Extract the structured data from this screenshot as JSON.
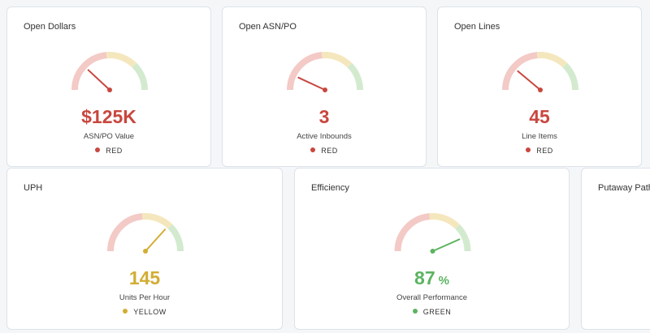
{
  "cards": [
    {
      "title": "Open Dollars",
      "value": "$125K",
      "subtitle": "ASN/PO Value",
      "status": "RED",
      "color": "#c8473f"
    },
    {
      "title": "Open ASN/PO",
      "value": "3",
      "subtitle": "Active Inbounds",
      "status": "RED",
      "color": "#c8473f"
    },
    {
      "title": "Open Lines",
      "value": "45",
      "subtitle": "Line Items",
      "status": "RED",
      "color": "#c8473f"
    },
    {
      "title": "UPH",
      "value": "145",
      "subtitle": "Units Per Hour",
      "status": "YELLOW",
      "color": "#d2ad33"
    },
    {
      "title": "Efficiency",
      "value": "87",
      "unit": "%",
      "subtitle": "Overall Performance",
      "status": "GREEN",
      "color": "#5cb360"
    },
    {
      "title": "Putaway Path"
    }
  ]
}
